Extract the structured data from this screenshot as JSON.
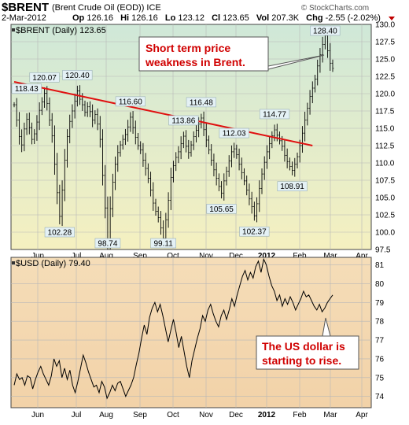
{
  "header": {
    "symbol": "$BRENT",
    "name": "(Brent Crude Oil (EOD))",
    "exchange": "ICE",
    "date": "2-Mar-2012",
    "op_label": "Op",
    "op_value": "126.16",
    "hi_label": "Hi",
    "hi_value": "126.16",
    "lo_label": "Lo",
    "lo_value": "123.12",
    "cl_label": "Cl",
    "cl_value": "123.65",
    "vol_label": "Vol",
    "vol_value": "207.3K",
    "chg_label": "Chg",
    "chg_value": "-2.55 (-2.02%)",
    "credit": "© StockCharts.com"
  },
  "colors": {
    "price": "#000000",
    "trendline": "#e01010",
    "annotation": "#d00000",
    "panel_grid": "#b8b8b8",
    "panel1_top": "#cfe8d8",
    "panel1_bottom": "#f5f0c0",
    "panel2_top": "#f5ddb8",
    "panel2_bottom": "#f2d2a8"
  },
  "chart_data": [
    {
      "type": "bar",
      "legend": "$BRENT (Daily) 123.65",
      "x_ticks": [
        "Jun",
        "Jul",
        "Aug",
        "Sep",
        "Oct",
        "Nov",
        "Dec",
        "2012",
        "Feb",
        "Mar",
        "Apr"
      ],
      "ylim": [
        97.5,
        130.0
      ],
      "y_ticks": [
        "97.5",
        "100.0",
        "102.5",
        "105.0",
        "107.5",
        "110.0",
        "112.5",
        "115.0",
        "117.5",
        "120.0",
        "122.5",
        "125.0",
        "127.5",
        "130.0"
      ],
      "grid": true,
      "series": [
        {
          "closes": [
            118.4,
            116.2,
            113.8,
            112.6,
            114.9,
            116.3,
            115.1,
            113.4,
            114.2,
            115.9,
            117.6,
            118.8,
            120.07,
            118.6,
            116.2,
            113.9,
            109.8,
            105.7,
            102.28,
            106.1,
            110.4,
            113.8,
            116.0,
            117.5,
            118.9,
            120.4,
            119.2,
            118.4,
            117.3,
            118.1,
            117.4,
            116.2,
            117.0,
            115.6,
            113.4,
            108.2,
            103.5,
            98.74,
            103.4,
            107.2,
            109.8,
            111.5,
            112.6,
            113.4,
            114.1,
            115.2,
            116.6,
            115.1,
            113.7,
            112.5,
            111.9,
            110.4,
            109.2,
            107.8,
            106.1,
            104.2,
            103.0,
            102.1,
            100.6,
            99.11,
            101.8,
            104.6,
            107.9,
            109.6,
            110.8,
            111.6,
            112.8,
            113.86,
            112.4,
            111.5,
            112.6,
            113.8,
            114.7,
            115.6,
            116.48,
            114.8,
            113.3,
            111.9,
            110.4,
            109.0,
            107.8,
            106.6,
            105.65,
            107.4,
            108.8,
            110.3,
            111.6,
            112.03,
            111.2,
            109.8,
            108.6,
            107.4,
            106.1,
            104.8,
            103.7,
            102.37,
            104.1,
            106.3,
            108.4,
            110.1,
            111.6,
            112.8,
            113.9,
            114.77,
            114.0,
            113.2,
            112.4,
            111.1,
            110.2,
            109.5,
            108.91,
            109.8,
            110.9,
            112.5,
            114.3,
            116.2,
            117.9,
            119.6,
            120.8,
            122.1,
            124.0,
            125.6,
            127.1,
            128.4,
            126.2,
            124.4,
            123.65
          ],
          "labels": [
            {
              "index": 0,
              "text": "118.43"
            },
            {
              "index": 12,
              "text": "120.07"
            },
            {
              "index": 18,
              "text": "102.28"
            },
            {
              "index": 25,
              "text": "120.40"
            },
            {
              "index": 37,
              "text": "98.74"
            },
            {
              "index": 46,
              "text": "116.60"
            },
            {
              "index": 59,
              "text": "99.11"
            },
            {
              "index": 67,
              "text": "113.86"
            },
            {
              "index": 74,
              "text": "116.48"
            },
            {
              "index": 82,
              "text": "105.65"
            },
            {
              "index": 87,
              "text": "112.03"
            },
            {
              "index": 95,
              "text": "102.37"
            },
            {
              "index": 103,
              "text": "114.77"
            },
            {
              "index": 110,
              "text": "108.91"
            },
            {
              "index": 123,
              "text": "128.40"
            }
          ]
        }
      ],
      "trendline": {
        "from": [
          0,
          121.7
        ],
        "to": [
          118,
          112.5
        ]
      },
      "annotation": "Short term price weakness in Brent."
    },
    {
      "type": "line",
      "legend": "$USD (Daily) 79.40",
      "x_ticks": [
        "Jun",
        "Jul",
        "Aug",
        "Sep",
        "Oct",
        "Nov",
        "Dec",
        "2012",
        "Feb",
        "Mar",
        "Apr"
      ],
      "ylim": [
        73.4,
        81.4
      ],
      "y_ticks": [
        "74",
        "75",
        "76",
        "77",
        "78",
        "79",
        "80",
        "81"
      ],
      "grid": true,
      "series": [
        {
          "values": [
            74.6,
            75.2,
            74.9,
            75.0,
            74.6,
            75.1,
            75.0,
            74.4,
            74.9,
            75.3,
            75.6,
            75.2,
            74.9,
            74.6,
            75.1,
            76.0,
            75.6,
            75.9,
            75.0,
            75.5,
            74.9,
            75.4,
            74.6,
            74.2,
            74.8,
            75.5,
            76.2,
            75.8,
            75.3,
            74.9,
            74.5,
            74.6,
            74.2,
            74.8,
            74.5,
            73.9,
            74.2,
            74.6,
            74.3,
            74.7,
            74.8,
            74.4,
            74.0,
            74.3,
            74.6,
            75.0,
            75.7,
            76.3,
            77.1,
            77.8,
            77.3,
            78.2,
            78.7,
            79.0,
            78.5,
            78.9,
            78.3,
            77.6,
            76.9,
            77.5,
            78.1,
            77.4,
            76.6,
            77.2,
            76.4,
            75.6,
            75.0,
            75.9,
            76.5,
            77.1,
            77.6,
            78.3,
            78.0,
            78.6,
            78.9,
            78.4,
            78.0,
            77.7,
            78.3,
            78.6,
            78.1,
            78.6,
            79.2,
            78.8,
            79.4,
            79.9,
            80.4,
            80.7,
            80.2,
            80.6,
            80.3,
            80.9,
            81.2,
            80.6,
            81.3,
            81.0,
            80.4,
            79.9,
            79.6,
            79.1,
            79.4,
            78.8,
            79.2,
            78.9,
            79.3,
            79.0,
            78.6,
            78.9,
            79.2,
            79.6,
            79.3,
            79.4,
            79.1,
            78.8,
            78.6,
            78.9,
            78.5,
            78.7,
            79.0,
            79.2,
            79.4
          ]
        }
      ],
      "annotation": "The US dollar is starting to rise."
    }
  ]
}
